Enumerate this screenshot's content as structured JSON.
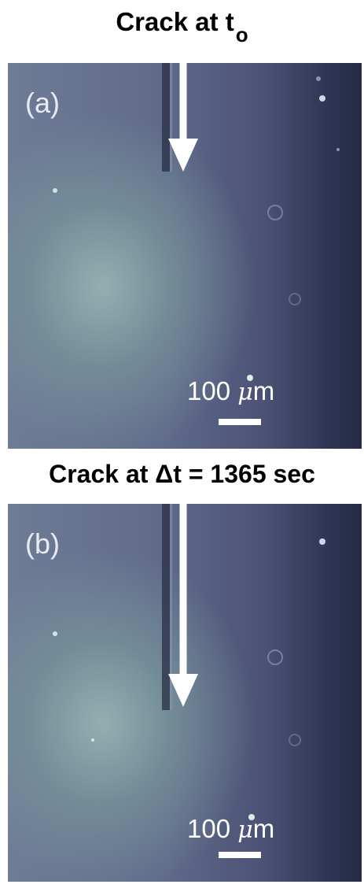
{
  "panels": [
    {
      "title": "Crack at t",
      "title_subscript": "o",
      "label": "(a)",
      "scale_value": "100 ",
      "scale_unit_mu": "μ",
      "scale_unit_rest": "m"
    },
    {
      "title": "Crack at Δt = 1365 sec",
      "label": "(b)",
      "scale_value": "100 ",
      "scale_unit_mu": "μ",
      "scale_unit_rest": "m"
    }
  ],
  "colors": {
    "arrow": "#ffffff",
    "crack": "#2a2f45",
    "background_light": "#96b2b2",
    "background_dark": "#252a45"
  }
}
